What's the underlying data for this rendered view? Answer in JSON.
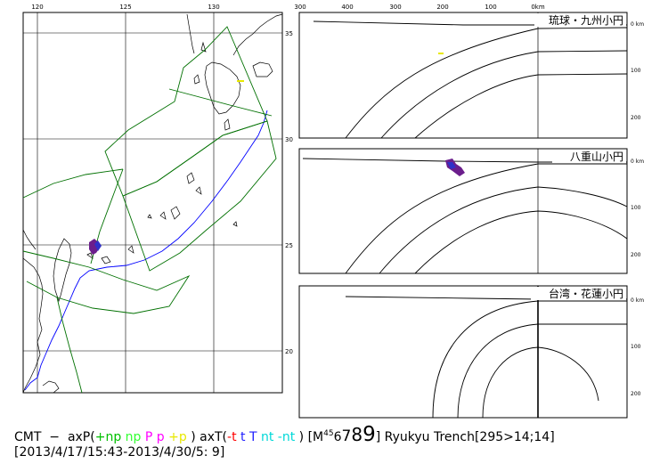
{
  "map": {
    "lon_ticks": [
      "120",
      "125",
      "130"
    ],
    "lat_ticks": [
      "35",
      "30",
      "25",
      "20"
    ],
    "colors": {
      "grid": "#000000",
      "coast": "#000000",
      "region": "#007000",
      "trench": "#0000ff",
      "event_purple": "#6b1e8c",
      "event_yellow": "#e8e800"
    }
  },
  "sections": {
    "distance_ticks": [
      "300",
      "200",
      "100",
      "0km"
    ],
    "distance_ticks_top": [
      "300",
      "400",
      "300",
      "200",
      "100",
      "0km"
    ],
    "depth_ticks": [
      "0 km",
      "100",
      "200"
    ],
    "titles": [
      "琉球・九州小円",
      "八重山小円",
      "台湾・花蓮小円"
    ]
  },
  "caption": {
    "prefix": "CMT  −  axP(",
    "p1": "+np",
    "p2": " np ",
    "p3": "P",
    "p4": " p ",
    "p5": "+p",
    "mid": " ) axT(",
    "t1": "-t",
    "t2": " t ",
    "t3": "T",
    "t4": " nt ",
    "t5": "-nt",
    "after_t": " ) [M",
    "m4": "4",
    "m5": "5",
    "m6": "6",
    "m7": "7",
    "m8": "8",
    "m9": "9",
    "suffix": "] Ryukyu Trench[295>14;14]",
    "line2": "[2013/4/17/15:43-2013/4/30/5: 9]"
  }
}
